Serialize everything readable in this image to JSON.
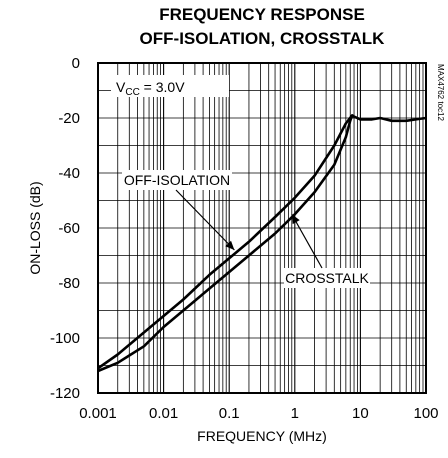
{
  "chart_data": {
    "type": "line",
    "title_line1": "FREQUENCY RESPONSE",
    "title_line2": "OFF-ISOLATION, CROSSTALK",
    "xlabel": "FREQUENCY (MHz)",
    "ylabel": "ON-LOSS (dB)",
    "x_scale": "log",
    "xlim": [
      0.001,
      100
    ],
    "ylim": [
      -120,
      0
    ],
    "x_ticks": [
      "0.001",
      "0.01",
      "0.1",
      "1",
      "10",
      "100"
    ],
    "y_ticks": [
      "0",
      "-20",
      "-40",
      "-60",
      "-80",
      "-100",
      "-120"
    ],
    "grid": true,
    "condition_label": "V",
    "condition_subscript": "CC",
    "condition_value": " = 3.0V",
    "watermark": "MAX4762 toc12",
    "series": [
      {
        "name": "OFF-ISOLATION",
        "x": [
          0.001,
          0.002,
          0.005,
          0.01,
          0.02,
          0.05,
          0.1,
          0.2,
          0.5,
          1,
          2,
          4,
          6,
          7.5
        ],
        "y": [
          -111,
          -106,
          -98,
          -92,
          -86,
          -77,
          -71,
          -65,
          -56,
          -49,
          -41,
          -30,
          -22,
          -19
        ]
      },
      {
        "name": "CROSSTALK",
        "x": [
          0.001,
          0.002,
          0.005,
          0.01,
          0.02,
          0.05,
          0.1,
          0.2,
          0.5,
          1,
          2,
          4,
          6,
          7,
          7.5,
          8,
          10,
          15,
          20,
          30,
          50,
          70,
          100
        ],
        "y": [
          -112,
          -109,
          -103,
          -96,
          -90,
          -82,
          -76,
          -70,
          -62,
          -55,
          -47,
          -37,
          -27,
          -21,
          -19,
          -19.5,
          -20.5,
          -20.5,
          -20,
          -21,
          -21,
          -20.5,
          -20
        ]
      }
    ],
    "annotations": [
      {
        "text": "OFF-ISOLATION",
        "arrow_to": [
          0.12,
          -68
        ]
      },
      {
        "text": "CROSSTALK",
        "arrow_to": [
          0.9,
          -55
        ]
      }
    ]
  }
}
